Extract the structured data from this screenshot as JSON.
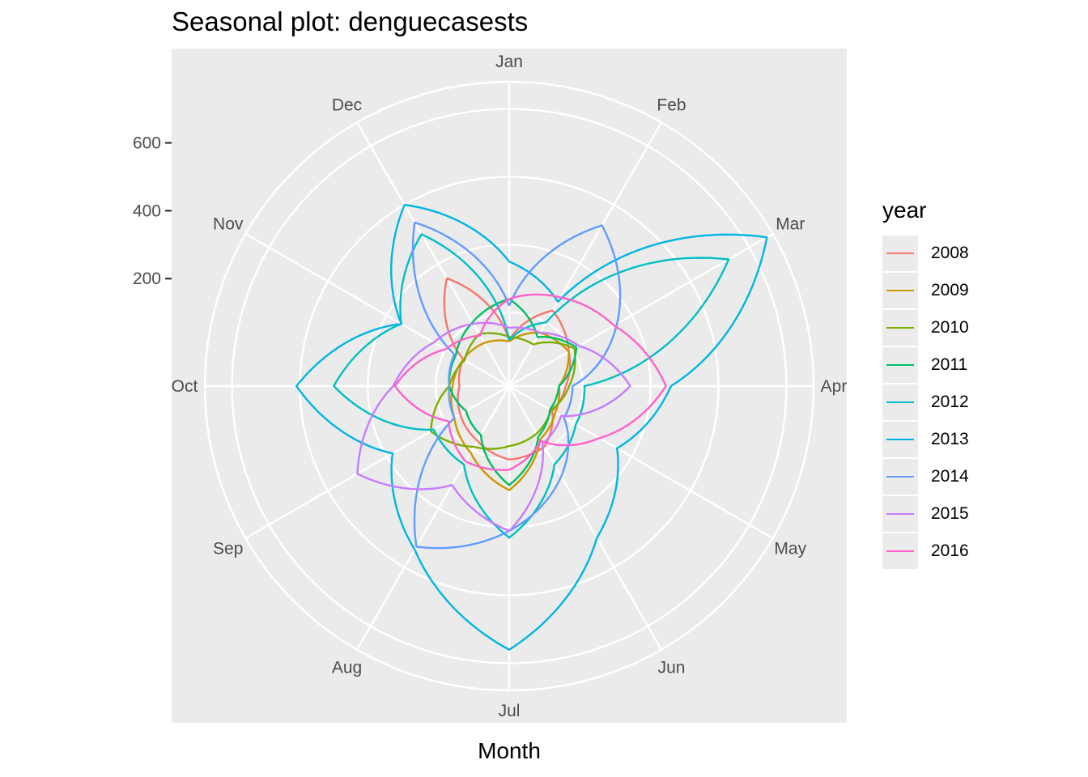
{
  "chart_data": {
    "type": "line",
    "coord": "polar",
    "title": "Seasonal plot: denguecasests",
    "xlabel": "Month",
    "ylabel": "",
    "categories": [
      "Jan",
      "Feb",
      "Mar",
      "Apr",
      "May",
      "Jun",
      "Jul",
      "Aug",
      "Sep",
      "Oct",
      "Nov",
      "Dec"
    ],
    "ylim": [
      0,
      780
    ],
    "y_ticks": [
      "200",
      "400",
      "600"
    ],
    "y_tick_values": [
      200,
      400,
      600
    ],
    "grid": true,
    "legend": {
      "title": "year",
      "position": "right"
    },
    "series": [
      {
        "name": "2008",
        "color": "#F8766D",
        "values": [
          18,
          140,
          86,
          50,
          30,
          90,
          100,
          70,
          50,
          30,
          40,
          250
        ]
      },
      {
        "name": "2009",
        "color": "#CD9600",
        "values": [
          15,
          65,
          86,
          30,
          40,
          65,
          190,
          110,
          70,
          50,
          40,
          30
        ]
      },
      {
        "name": "2010",
        "color": "#7CAE00",
        "values": [
          28,
          25,
          105,
          60,
          25,
          45,
          60,
          90,
          150,
          60,
          35,
          60
        ]
      },
      {
        "name": "2011",
        "color": "#00BE67",
        "values": [
          140,
          50,
          112,
          30,
          22,
          55,
          175,
          50,
          30,
          60,
          65,
          100
        ]
      },
      {
        "name": "2012",
        "color": "#00BFC4",
        "values": [
          18,
          100,
          630,
          105,
          110,
          150,
          330,
          150,
          140,
          400,
          250,
          400
        ]
      },
      {
        "name": "2013",
        "color": "#00B5E5",
        "values": [
          250,
          170,
          760,
          360,
          250,
          400,
          660,
          440,
          280,
          510,
          250,
          500
        ]
      },
      {
        "name": "2014",
        "color": "#619CFF",
        "values": [
          120,
          430,
          250,
          70,
          70,
          190,
          310,
          430,
          70,
          60,
          70,
          440
        ]
      },
      {
        "name": "2015",
        "color": "#C77CFF",
        "values": [
          55,
          65,
          120,
          240,
          60,
          80,
          310,
          220,
          400,
          225,
          140,
          95
        ]
      },
      {
        "name": "2016",
        "color": "#FF61CC",
        "values": [
          140,
          185,
          240,
          345,
          190,
          70,
          130,
          140,
          90,
          220,
          100,
          55
        ]
      }
    ]
  }
}
